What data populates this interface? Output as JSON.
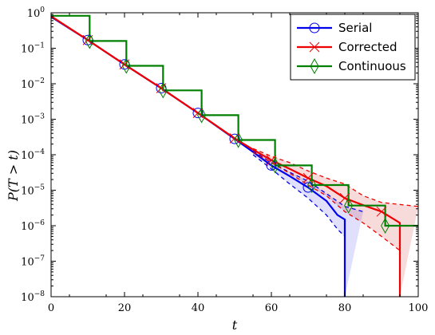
{
  "chart_data": {
    "type": "line",
    "title": "",
    "xlabel": "t",
    "ylabel": "P(T > t)",
    "xlim": [
      0,
      100
    ],
    "ylim_exponent": [
      -8,
      0
    ],
    "yscale": "log",
    "grid": false,
    "legend_position": "top-right",
    "x_ticks": [
      0,
      20,
      40,
      60,
      80,
      100
    ],
    "y_tick_labels": [
      {
        "base": "10",
        "exp": "0"
      },
      {
        "base": "10",
        "exp": "−1"
      },
      {
        "base": "10",
        "exp": "−2"
      },
      {
        "base": "10",
        "exp": "−3"
      },
      {
        "base": "10",
        "exp": "−4"
      },
      {
        "base": "10",
        "exp": "−5"
      },
      {
        "base": "10",
        "exp": "−6"
      },
      {
        "base": "10",
        "exp": "−7"
      },
      {
        "base": "10",
        "exp": "−8"
      }
    ],
    "series": [
      {
        "name": "Serial",
        "color": "#0000ee",
        "marker": "circle",
        "curve": [
          [
            0,
            0.77
          ],
          [
            10,
            0.17
          ],
          [
            20,
            0.035
          ],
          [
            30,
            0.0075
          ],
          [
            40,
            0.0015
          ],
          [
            50,
            0.00028
          ],
          [
            55,
            0.00012
          ],
          [
            60,
            5e-05
          ],
          [
            65,
            2.5e-05
          ],
          [
            70,
            1.2e-05
          ],
          [
            75,
            5e-06
          ],
          [
            78,
            2e-06
          ],
          [
            80,
            1.5e-06
          ],
          [
            80,
            1e-09
          ]
        ],
        "upper": [
          [
            55,
            0.00013
          ],
          [
            60,
            6e-05
          ],
          [
            65,
            3.2e-05
          ],
          [
            70,
            1.8e-05
          ],
          [
            75,
            8e-06
          ],
          [
            80,
            3.5e-06
          ],
          [
            85,
            2.5e-06
          ]
        ],
        "lower": [
          [
            55,
            0.0001
          ],
          [
            60,
            4e-05
          ],
          [
            65,
            1.5e-05
          ],
          [
            70,
            6e-06
          ],
          [
            75,
            2e-06
          ],
          [
            78,
            8e-07
          ],
          [
            80,
            5e-07
          ],
          [
            80,
            1e-09
          ]
        ],
        "markers_x": [
          10,
          20,
          30,
          40,
          50,
          60,
          70
        ]
      },
      {
        "name": "Corrected",
        "color": "#ee0000",
        "marker": "x",
        "curve": [
          [
            0,
            0.8
          ],
          [
            10,
            0.17
          ],
          [
            20,
            0.035
          ],
          [
            30,
            0.0075
          ],
          [
            40,
            0.0015
          ],
          [
            50,
            0.00029
          ],
          [
            55,
            0.00014
          ],
          [
            60,
            7e-05
          ],
          [
            65,
            4e-05
          ],
          [
            70,
            2.2e-05
          ],
          [
            75,
            1.3e-05
          ],
          [
            80,
            6e-06
          ],
          [
            85,
            3.8e-06
          ],
          [
            90,
            2.5e-06
          ],
          [
            95,
            1.2e-06
          ],
          [
            95,
            1e-09
          ]
        ],
        "upper": [
          [
            55,
            0.00015
          ],
          [
            60,
            9e-05
          ],
          [
            65,
            6e-05
          ],
          [
            70,
            3.5e-05
          ],
          [
            75,
            2.2e-05
          ],
          [
            80,
            1.5e-05
          ],
          [
            85,
            7e-06
          ],
          [
            90,
            4.5e-06
          ],
          [
            100,
            3.5e-06
          ]
        ],
        "lower": [
          [
            55,
            0.00012
          ],
          [
            60,
            6e-05
          ],
          [
            65,
            3e-05
          ],
          [
            70,
            1.4e-05
          ],
          [
            75,
            7e-06
          ],
          [
            80,
            2.5e-06
          ],
          [
            85,
            1.2e-06
          ],
          [
            90,
            5e-07
          ],
          [
            95,
            2e-07
          ],
          [
            95,
            1e-09
          ]
        ],
        "markers_x": [
          10,
          20,
          30,
          40,
          50,
          60,
          70,
          80,
          90
        ]
      },
      {
        "name": "Continuous",
        "color": "#008000",
        "marker": "diamond",
        "steps": [
          [
            0,
            0.82
          ],
          [
            10.5,
            0.82
          ],
          [
            10.5,
            0.16
          ],
          [
            20.5,
            0.16
          ],
          [
            20.5,
            0.032
          ],
          [
            30.5,
            0.032
          ],
          [
            30.5,
            0.0065
          ],
          [
            41,
            0.0065
          ],
          [
            41,
            0.0013
          ],
          [
            51,
            0.0013
          ],
          [
            51,
            0.00026
          ],
          [
            61,
            0.00026
          ],
          [
            61,
            5e-05
          ],
          [
            71,
            5e-05
          ],
          [
            71,
            1.4e-05
          ],
          [
            81,
            1.4e-05
          ],
          [
            81,
            3.7e-06
          ],
          [
            91,
            3.7e-06
          ],
          [
            91,
            1e-06
          ],
          [
            100,
            1e-06
          ]
        ],
        "markers": [
          [
            10.5,
            0.16
          ],
          [
            20.5,
            0.032
          ],
          [
            30.5,
            0.0065
          ],
          [
            41,
            0.0013
          ],
          [
            51,
            0.00026
          ],
          [
            61,
            5e-05
          ],
          [
            71,
            1.4e-05
          ],
          [
            81,
            3.7e-06
          ],
          [
            91,
            1e-06
          ]
        ]
      }
    ]
  }
}
